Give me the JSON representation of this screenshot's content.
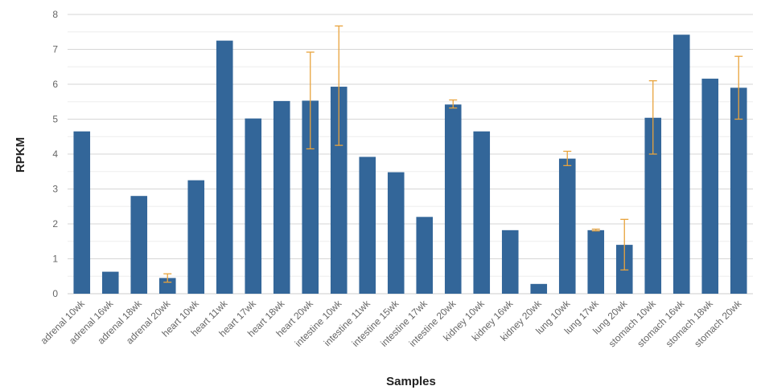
{
  "chart_data": {
    "type": "bar",
    "xlabel": "Samples",
    "ylabel": "RPKM",
    "ylim": [
      0,
      8
    ],
    "yticks": [
      "0",
      "1",
      "2",
      "3",
      "4",
      "5",
      "6",
      "7",
      "8"
    ],
    "grid": true,
    "categories": [
      "adrenal 10wk",
      "adrenal 16wk",
      "adrenal 18wk",
      "adrenal 20wk",
      "heart 10wk",
      "heart 11wk",
      "heart 17wk",
      "heart 18wk",
      "heart 20wk",
      "intestine 10wk",
      "intestine 11wk",
      "intestine 15wk",
      "intestine 17wk",
      "intestine 20wk",
      "kidney 10wk",
      "kidney 16wk",
      "kidney 20wk",
      "lung 10wk",
      "lung 17wk",
      "lung 20wk",
      "stomach 10wk",
      "stomach 16wk",
      "stomach 18wk",
      "stomach 20wk"
    ],
    "values": [
      4.65,
      0.63,
      2.8,
      0.45,
      3.25,
      7.25,
      5.02,
      5.52,
      5.53,
      5.93,
      3.92,
      3.48,
      2.2,
      5.42,
      4.65,
      1.82,
      0.28,
      3.87,
      1.82,
      1.4,
      5.04,
      7.42,
      6.16,
      5.9
    ],
    "error_bars": [
      null,
      null,
      null,
      [
        0.33,
        0.57
      ],
      null,
      null,
      null,
      null,
      [
        4.15,
        6.92
      ],
      [
        4.25,
        7.67
      ],
      null,
      null,
      null,
      [
        5.32,
        5.55
      ],
      null,
      null,
      null,
      [
        3.67,
        4.08
      ],
      [
        1.8,
        1.85
      ],
      [
        0.68,
        2.13
      ],
      [
        4.0,
        6.1
      ],
      null,
      null,
      [
        5.0,
        6.8
      ]
    ],
    "colors": {
      "bar": "#336699",
      "error": "#e8a33d",
      "grid": "#e0e0e0",
      "axis": "#cccccc"
    }
  }
}
